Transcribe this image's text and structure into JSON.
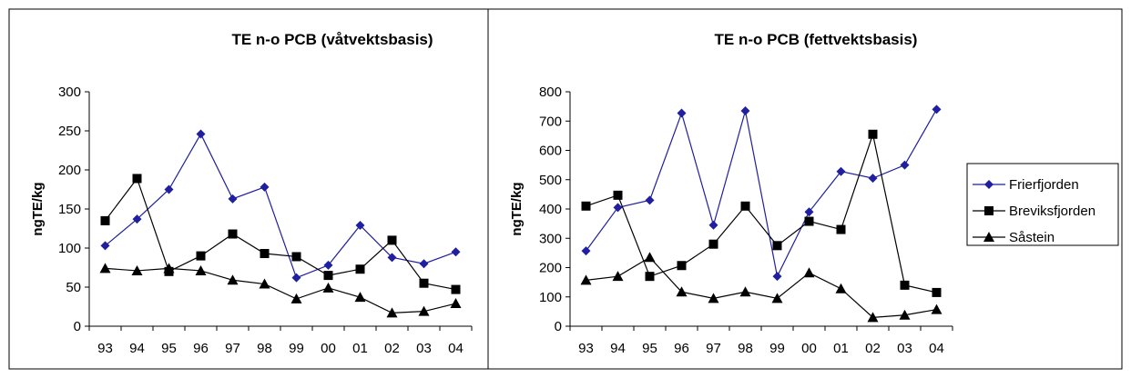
{
  "colors": {
    "Frierfjorden": "#1f1fa0",
    "Breviksfjorden": "#000000",
    "Såstein": "#000000"
  },
  "legend": {
    "placement": "right",
    "items": [
      {
        "label": "Frierfjorden",
        "marker": "diamond"
      },
      {
        "label": "Breviksfjorden",
        "marker": "square"
      },
      {
        "label": "Såstein",
        "marker": "triangle"
      }
    ]
  },
  "chart_data": [
    {
      "type": "line",
      "title": "TE n-o PCB (våtvektsbasis)",
      "xlabel": "",
      "ylabel": "ngTE/kg",
      "categories": [
        "93",
        "94",
        "95",
        "96",
        "97",
        "98",
        "99",
        "00",
        "01",
        "02",
        "03",
        "04"
      ],
      "ylim": [
        0,
        300
      ],
      "yticks": [
        "0",
        "50",
        "100",
        "150",
        "200",
        "250",
        "300"
      ],
      "grid": false,
      "series": [
        {
          "name": "Frierfjorden",
          "marker": "diamond",
          "values": [
            103,
            137,
            175,
            246,
            163,
            178,
            62,
            78,
            129,
            88,
            80,
            95
          ]
        },
        {
          "name": "Breviksfjorden",
          "marker": "square",
          "values": [
            135,
            189,
            70,
            90,
            118,
            93,
            89,
            65,
            73,
            110,
            55,
            47
          ]
        },
        {
          "name": "Såstein",
          "marker": "triangle",
          "values": [
            74,
            71,
            74,
            71,
            59,
            54,
            35,
            49,
            37,
            17,
            19,
            29
          ]
        }
      ]
    },
    {
      "type": "line",
      "title": "TE n-o PCB (fettvektsbasis)",
      "xlabel": "",
      "ylabel": "ngTE/kg",
      "categories": [
        "93",
        "94",
        "95",
        "96",
        "97",
        "98",
        "99",
        "00",
        "01",
        "02",
        "03",
        "04"
      ],
      "ylim": [
        0,
        800
      ],
      "yticks": [
        "0",
        "100",
        "200",
        "300",
        "400",
        "500",
        "600",
        "700",
        "800"
      ],
      "grid": false,
      "series": [
        {
          "name": "Frierfjorden",
          "marker": "diamond",
          "values": [
            257,
            405,
            430,
            727,
            345,
            735,
            170,
            390,
            528,
            505,
            550,
            740
          ]
        },
        {
          "name": "Breviksfjorden",
          "marker": "square",
          "values": [
            410,
            447,
            170,
            207,
            280,
            410,
            275,
            358,
            330,
            655,
            140,
            115
          ]
        },
        {
          "name": "Såstein",
          "marker": "triangle",
          "values": [
            157,
            170,
            235,
            117,
            95,
            117,
            95,
            182,
            128,
            30,
            38,
            57
          ]
        }
      ]
    }
  ]
}
